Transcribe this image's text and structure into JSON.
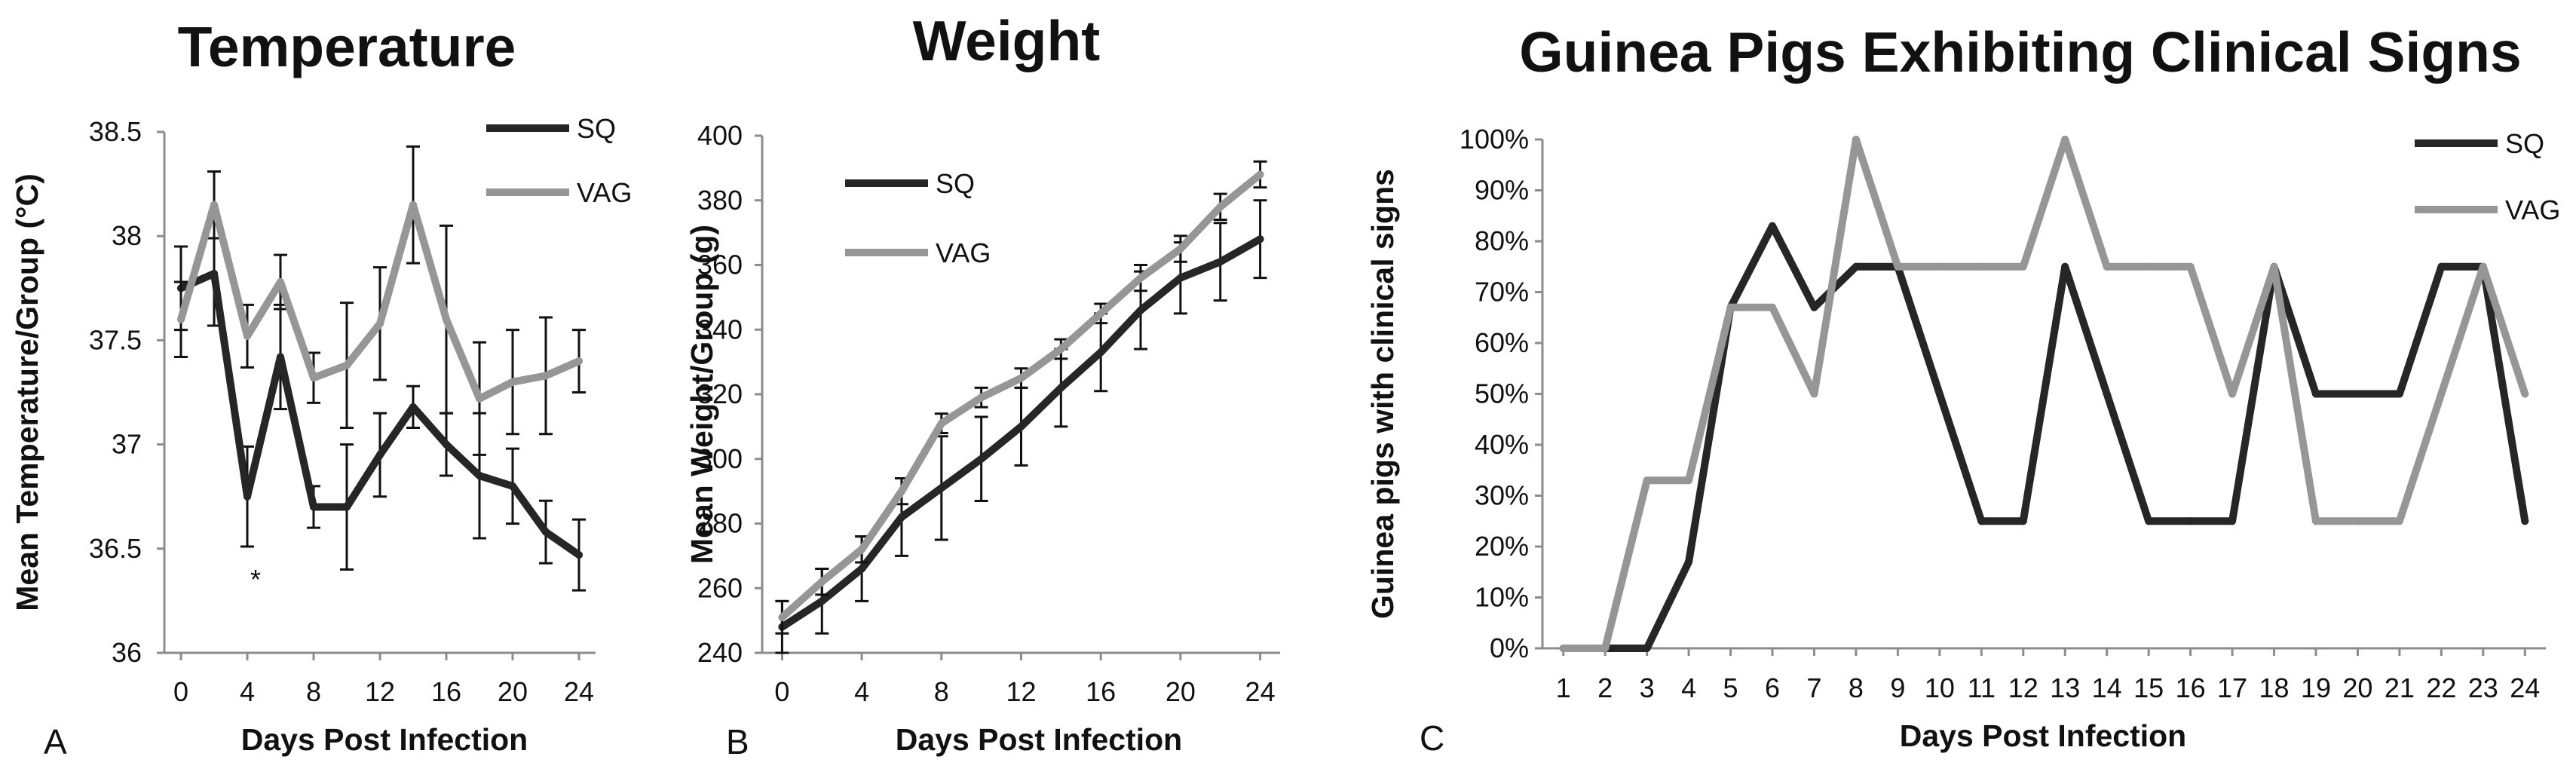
{
  "colors": {
    "SQ": "#262626",
    "VAG": "#969696",
    "axis": "#8c8c8c",
    "text": "#111111"
  },
  "chart_data": [
    {
      "id": "A",
      "type": "line",
      "panel_label": "A",
      "title": "Temperature",
      "xlabel": "Days Post Infection",
      "ylabel": "Mean Temperature/Group (°C)",
      "xlim": [
        -1,
        25
      ],
      "ylim": [
        36,
        38.5
      ],
      "xticks": [
        0,
        4,
        8,
        12,
        16,
        20,
        24
      ],
      "yticks": [
        36,
        36.5,
        37,
        37.5,
        38,
        38.5
      ],
      "ytick_labels": [
        "36",
        "36.5",
        "37",
        "37.5",
        "38",
        "38.5"
      ],
      "legend": {
        "placement": "top-right",
        "entries": [
          "SQ",
          "VAG"
        ]
      },
      "annotations": [
        {
          "text": "*",
          "x": 4.5,
          "y": 36.38
        }
      ],
      "x": [
        0,
        2,
        4,
        6,
        8,
        10,
        12,
        14,
        16,
        18,
        20,
        22,
        24
      ],
      "series": [
        {
          "name": "SQ",
          "values": [
            37.75,
            37.82,
            36.75,
            37.42,
            36.7,
            36.7,
            36.95,
            37.18,
            37.0,
            36.85,
            36.8,
            36.58,
            36.47
          ],
          "errors": [
            0.2,
            0.25,
            0.24,
            0.25,
            0.1,
            0.3,
            0.2,
            0.1,
            0.15,
            0.3,
            0.18,
            0.15,
            0.17
          ]
        },
        {
          "name": "VAG",
          "values": [
            37.6,
            38.15,
            37.52,
            37.78,
            37.32,
            37.38,
            37.58,
            38.15,
            37.6,
            37.22,
            37.3,
            37.33,
            37.4
          ],
          "errors": [
            0.18,
            0.16,
            0.15,
            0.13,
            0.12,
            0.3,
            0.27,
            0.28,
            0.45,
            0.27,
            0.25,
            0.28,
            0.15
          ]
        }
      ]
    },
    {
      "id": "B",
      "type": "line",
      "panel_label": "B",
      "title": "Weight",
      "xlabel": "Days Post Infection",
      "ylabel": "Mean Weight/Group (g)",
      "xlim": [
        -1,
        25
      ],
      "ylim": [
        240,
        400
      ],
      "xticks": [
        0,
        4,
        8,
        12,
        16,
        20,
        24
      ],
      "yticks": [
        240,
        260,
        280,
        300,
        320,
        340,
        360,
        380,
        400
      ],
      "ytick_labels": [
        "240",
        "260",
        "280",
        "300",
        "320",
        "340",
        "360",
        "380",
        "400"
      ],
      "legend": {
        "placement": "top-left",
        "entries": [
          "SQ",
          "VAG"
        ]
      },
      "x": [
        0,
        2,
        4,
        6,
        8,
        10,
        12,
        14,
        16,
        18,
        20,
        22,
        24
      ],
      "series": [
        {
          "name": "SQ",
          "values": [
            248,
            256,
            266,
            282,
            291,
            300,
            310,
            322,
            333,
            346,
            356,
            361,
            368
          ],
          "errors": [
            8,
            10,
            10,
            12,
            16,
            13,
            12,
            12,
            12,
            12,
            11,
            12,
            12
          ]
        },
        {
          "name": "VAG",
          "values": [
            251,
            262,
            272,
            290,
            311,
            319,
            325,
            334,
            345,
            356,
            365,
            378,
            388
          ],
          "errors": [
            5,
            4,
            4,
            4,
            3,
            3,
            3,
            3,
            3,
            4,
            4,
            4,
            4
          ]
        }
      ]
    },
    {
      "id": "C",
      "type": "line",
      "panel_label": "C",
      "title": "Guinea Pigs Exhibiting Clinical Signs",
      "xlabel": "Days Post Infection",
      "ylabel": "Guinea pigs with clinical signs",
      "xlim": [
        0.5,
        24.5
      ],
      "ylim": [
        0,
        100
      ],
      "categories": [
        "1",
        "2",
        "3",
        "4",
        "5",
        "6",
        "7",
        "8",
        "9",
        "10",
        "11",
        "12",
        "13",
        "14",
        "15",
        "16",
        "17",
        "18",
        "19",
        "20",
        "21",
        "22",
        "23",
        "24"
      ],
      "yticks": [
        0,
        10,
        20,
        30,
        40,
        50,
        60,
        70,
        80,
        90,
        100
      ],
      "ytick_labels": [
        "0%",
        "10%",
        "20%",
        "30%",
        "40%",
        "50%",
        "60%",
        "70%",
        "80%",
        "90%",
        "100%"
      ],
      "legend": {
        "placement": "top-right",
        "entries": [
          "SQ",
          "VAG"
        ]
      },
      "x": [
        1,
        2,
        3,
        4,
        5,
        6,
        7,
        8,
        9,
        10,
        11,
        12,
        13,
        14,
        15,
        16,
        17,
        18,
        19,
        20,
        21,
        22,
        23,
        24
      ],
      "series": [
        {
          "name": "SQ",
          "values": [
            0,
            0,
            0,
            17,
            67,
            83,
            67,
            75,
            75,
            50,
            25,
            25,
            75,
            50,
            25,
            25,
            25,
            75,
            50,
            50,
            50,
            75,
            75,
            25
          ]
        },
        {
          "name": "VAG",
          "values": [
            0,
            0,
            33,
            33,
            67,
            67,
            50,
            100,
            75,
            75,
            75,
            75,
            100,
            75,
            75,
            75,
            50,
            75,
            25,
            25,
            25,
            50,
            75,
            50
          ]
        }
      ]
    }
  ]
}
